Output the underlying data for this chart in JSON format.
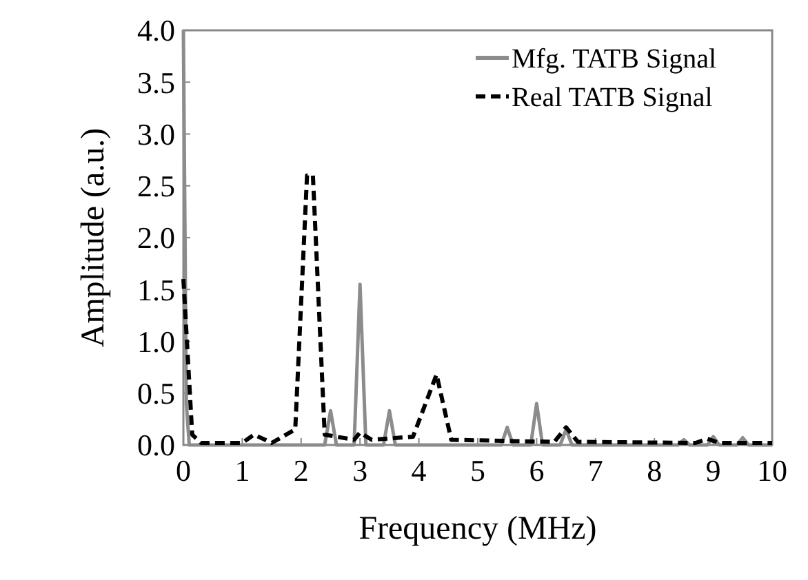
{
  "chart_data": {
    "type": "line",
    "xlabel": "Frequency (MHz)",
    "ylabel": "Amplitude (a.u.)",
    "xlim": [
      0,
      10
    ],
    "ylim": [
      0,
      4
    ],
    "xticks": [
      0,
      1,
      2,
      3,
      4,
      5,
      6,
      7,
      8,
      9,
      10
    ],
    "yticks": [
      {
        "value": 0,
        "label": "0.0"
      },
      {
        "value": 0.5,
        "label": "0.5"
      },
      {
        "value": 1,
        "label": "1.0"
      },
      {
        "value": 1.5,
        "label": "1.5"
      },
      {
        "value": 2,
        "label": "2.0"
      },
      {
        "value": 2.5,
        "label": "2.5"
      },
      {
        "value": 3,
        "label": "3.0"
      },
      {
        "value": 3.5,
        "label": "3.5"
      },
      {
        "value": 4,
        "label": "4.0"
      }
    ],
    "legend": "top right",
    "grid": false,
    "series": [
      {
        "name": "Mfg. TATB Signal",
        "color": "#8c8c8c",
        "line_style": "solid",
        "x": [
          0,
          0.05,
          0.1,
          2.4,
          2.5,
          2.6,
          2.9,
          3.0,
          3.1,
          3.4,
          3.5,
          3.6,
          5.4,
          5.5,
          5.6,
          5.9,
          6.0,
          6.1,
          6.4,
          6.5,
          6.6,
          8.4,
          8.5,
          8.6,
          8.9,
          9.0,
          9.1,
          9.4,
          9.5,
          9.6,
          10
        ],
        "values": [
          4.0,
          0.4,
          0.0,
          0.0,
          0.33,
          0.0,
          0.0,
          1.55,
          0.0,
          0.0,
          0.33,
          0.0,
          0.0,
          0.17,
          0.0,
          0.0,
          0.4,
          0.0,
          0.0,
          0.15,
          0.0,
          0.0,
          0.05,
          0.0,
          0.0,
          0.08,
          0.0,
          0.0,
          0.07,
          0.0,
          0.0
        ]
      },
      {
        "name": "Real TATB Signal",
        "color": "#000000",
        "line_style": "dashed",
        "x": [
          0,
          0.15,
          0.3,
          1.0,
          1.2,
          1.5,
          1.9,
          2.1,
          2.2,
          2.4,
          2.9,
          3.0,
          3.2,
          3.9,
          4.3,
          4.55,
          6.3,
          6.5,
          6.7,
          8.7,
          8.9,
          9.1,
          10
        ],
        "values": [
          1.6,
          0.1,
          0.02,
          0.02,
          0.1,
          0.02,
          0.15,
          2.6,
          2.6,
          0.1,
          0.05,
          0.12,
          0.05,
          0.08,
          0.68,
          0.05,
          0.03,
          0.17,
          0.03,
          0.02,
          0.06,
          0.02,
          0.02
        ]
      }
    ]
  }
}
